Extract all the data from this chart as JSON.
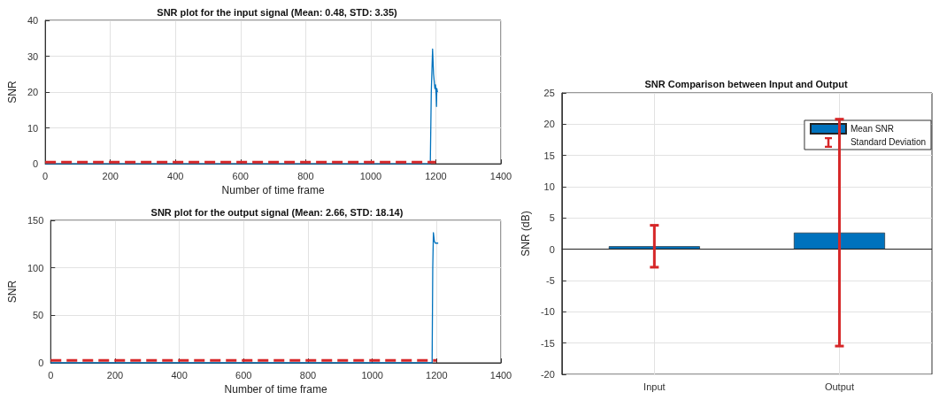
{
  "chart_data": [
    {
      "type": "line",
      "title": "SNR plot for the input signal (Mean: 0.48, STD: 3.35)",
      "xlabel": "Number of time frame",
      "ylabel": "SNR",
      "xlim": [
        0,
        1400
      ],
      "xticks": [
        0,
        200,
        400,
        600,
        800,
        1000,
        1200,
        1400
      ],
      "ylim": [
        0,
        40
      ],
      "yticks": [
        0,
        10,
        20,
        30,
        40
      ],
      "grid": true,
      "marker": "none",
      "series": [
        {
          "color": "#0072bd",
          "x": [
            0,
            1183,
            1186,
            1190,
            1193,
            1197,
            1199,
            1201,
            1202,
            1203,
            1205
          ],
          "values": [
            0,
            0,
            20,
            32,
            25,
            21,
            22,
            19,
            16,
            21,
            20
          ]
        },
        {
          "color": "#d62728",
          "line_style": "dashed",
          "x": [
            0,
            1200
          ],
          "values": [
            0.48,
            0.48
          ]
        }
      ]
    },
    {
      "type": "line",
      "title": "SNR plot for the output signal (Mean: 2.66, STD: 18.14)",
      "xlabel": "Number of time frame",
      "ylabel": "SNR",
      "xlim": [
        0,
        1400
      ],
      "xticks": [
        0,
        200,
        400,
        600,
        800,
        1000,
        1200,
        1400
      ],
      "ylim": [
        0,
        150
      ],
      "yticks": [
        0,
        50,
        100,
        150
      ],
      "grid": true,
      "marker": "none",
      "series": [
        {
          "color": "#0072bd",
          "x": [
            0,
            1186,
            1188,
            1190,
            1193,
            1196,
            1205
          ],
          "values": [
            0,
            0,
            100,
            137,
            128,
            126,
            126
          ]
        },
        {
          "color": "#d62728",
          "line_style": "dashed",
          "x": [
            0,
            1200
          ],
          "values": [
            2.66,
            2.66
          ]
        }
      ]
    },
    {
      "type": "bar",
      "title": "SNR Comparison between Input and Output",
      "ylabel": "SNR (dB)",
      "categories": [
        "Input",
        "Output"
      ],
      "ylim": [
        -20,
        25
      ],
      "yticks": [
        -20,
        -15,
        -10,
        -5,
        0,
        5,
        10,
        15,
        20,
        25
      ],
      "grid": true,
      "legend": "top right",
      "series": [
        {
          "name": "Mean SNR",
          "color": "#0072bd",
          "values": [
            0.48,
            2.66
          ],
          "errors": [
            3.35,
            18.14
          ]
        }
      ],
      "annotations": [
        "Standard Deviation"
      ]
    }
  ]
}
